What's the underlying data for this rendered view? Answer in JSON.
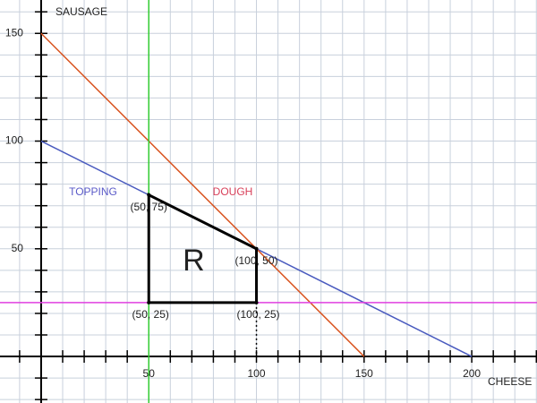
{
  "chart_data": {
    "type": "line",
    "xlabel": "CHEESE",
    "ylabel": "SAUSAGE",
    "xlim": [
      -19.1,
      230.3
    ],
    "ylim": [
      -21.6,
      165.5
    ],
    "xticks": [
      50,
      100,
      150,
      200
    ],
    "yticks": [
      50,
      100,
      150
    ],
    "xgrid": [
      -10,
      0,
      10,
      20,
      30,
      40,
      50,
      60,
      70,
      80,
      90,
      100,
      110,
      120,
      130,
      140,
      150,
      160,
      170,
      180,
      190,
      200,
      210,
      220,
      230
    ],
    "ygrid": [
      -20,
      -10,
      0,
      10,
      20,
      30,
      40,
      50,
      60,
      70,
      80,
      90,
      100,
      110,
      120,
      130,
      140,
      150,
      160
    ],
    "grid": true,
    "series": [
      {
        "name": "TOPPING",
        "name_color": "#5a5ac8",
        "color": "#4a5bbf",
        "x": [
          0,
          200
        ],
        "values": [
          100,
          0
        ]
      },
      {
        "name": "DOUGH",
        "name_color": "#d8405a",
        "color": "#d9531e",
        "x": [
          0,
          150
        ],
        "values": [
          150,
          0
        ]
      },
      {
        "color": "#33cc33",
        "x": [
          50,
          50
        ],
        "values": [
          -21.6,
          165.5
        ]
      },
      {
        "color": "#e040e0",
        "x": [
          -19.1,
          230.3
        ],
        "values": [
          25,
          25
        ]
      },
      {
        "color": "#000000",
        "style": "dotted",
        "x": [
          100,
          100
        ],
        "values": [
          25,
          0
        ]
      }
    ],
    "region": {
      "label": "R",
      "color": "#000000",
      "x": [
        50,
        50,
        100,
        100
      ],
      "y": [
        25,
        75,
        50,
        25
      ]
    },
    "annotations": [
      {
        "label": "(50, 75)",
        "x": 50,
        "y": 75
      },
      {
        "label": "(100, 50)",
        "x": 100,
        "y": 50
      },
      {
        "label": "(50, 25)",
        "x": 50,
        "y": 25
      },
      {
        "label": "(100, 25)",
        "x": 100,
        "y": 25
      }
    ]
  }
}
